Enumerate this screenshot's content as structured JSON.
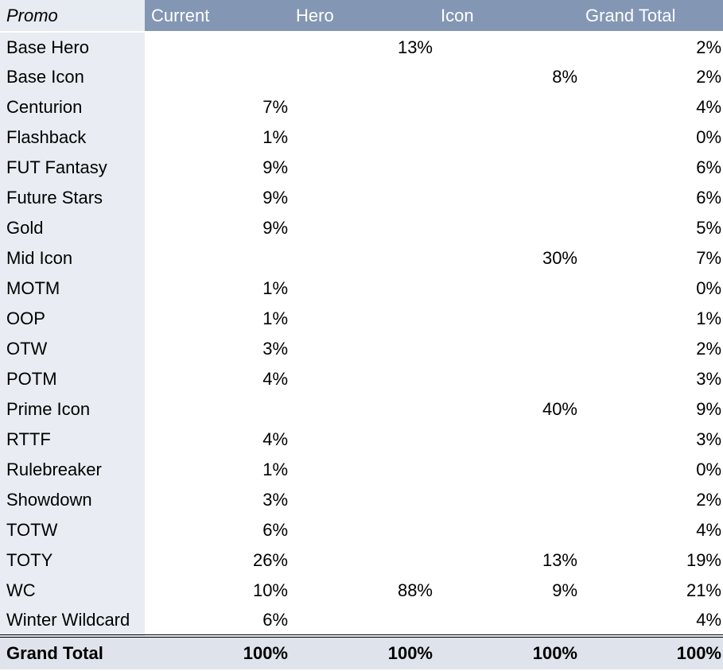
{
  "chart_data": {
    "type": "table",
    "columns": [
      "Promo",
      "Current",
      "Hero",
      "Icon",
      "Grand Total"
    ],
    "rows": [
      {
        "label": "Base Hero",
        "values": [
          "",
          "13%",
          "",
          "2%"
        ]
      },
      {
        "label": "Base Icon",
        "values": [
          "",
          "",
          "8%",
          "2%"
        ]
      },
      {
        "label": "Centurion",
        "values": [
          "7%",
          "",
          "",
          "4%"
        ]
      },
      {
        "label": "Flashback",
        "values": [
          "1%",
          "",
          "",
          "0%"
        ]
      },
      {
        "label": "FUT Fantasy",
        "values": [
          "9%",
          "",
          "",
          "6%"
        ]
      },
      {
        "label": "Future Stars",
        "values": [
          "9%",
          "",
          "",
          "6%"
        ]
      },
      {
        "label": "Gold",
        "values": [
          "9%",
          "",
          "",
          "5%"
        ]
      },
      {
        "label": "Mid Icon",
        "values": [
          "",
          "",
          "30%",
          "7%"
        ]
      },
      {
        "label": "MOTM",
        "values": [
          "1%",
          "",
          "",
          "0%"
        ]
      },
      {
        "label": "OOP",
        "values": [
          "1%",
          "",
          "",
          "1%"
        ]
      },
      {
        "label": "OTW",
        "values": [
          "3%",
          "",
          "",
          "2%"
        ]
      },
      {
        "label": "POTM",
        "values": [
          "4%",
          "",
          "",
          "3%"
        ]
      },
      {
        "label": "Prime Icon",
        "values": [
          "",
          "",
          "40%",
          "9%"
        ]
      },
      {
        "label": "RTTF",
        "values": [
          "4%",
          "",
          "",
          "3%"
        ]
      },
      {
        "label": "Rulebreaker",
        "values": [
          "1%",
          "",
          "",
          "0%"
        ]
      },
      {
        "label": "Showdown",
        "values": [
          "3%",
          "",
          "",
          "2%"
        ]
      },
      {
        "label": "TOTW",
        "values": [
          "6%",
          "",
          "",
          "4%"
        ]
      },
      {
        "label": "TOTY",
        "values": [
          "26%",
          "",
          "13%",
          "19%"
        ]
      },
      {
        "label": "WC",
        "values": [
          "10%",
          "88%",
          "9%",
          "21%"
        ]
      },
      {
        "label": "Winter Wildcard",
        "values": [
          "6%",
          "",
          "",
          "4%"
        ]
      }
    ],
    "total": {
      "label": "Grand Total",
      "values": [
        "100%",
        "100%",
        "100%",
        "100%"
      ]
    },
    "colors": {
      "header_bg": "#8396b4",
      "header_text": "#ffffff",
      "label_bg": "#e9edf3",
      "total_bg": "#dfe4ec"
    }
  }
}
